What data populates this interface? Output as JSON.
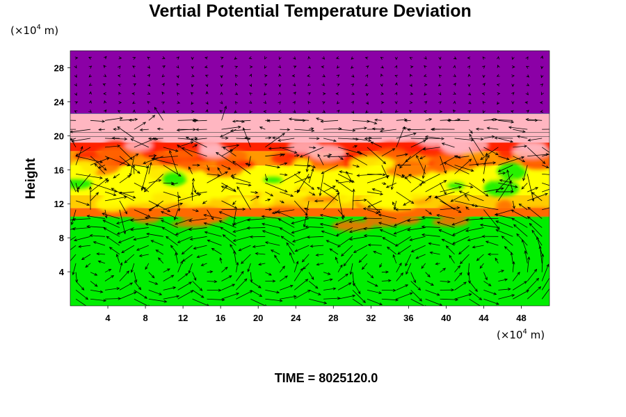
{
  "chart_data": {
    "type": "heatmap",
    "title": "Vertial Potential Temperature Deviation",
    "ylabel": "Height",
    "xlabel": "",
    "x_unit": {
      "prefix": "(×10",
      "exp": "4",
      "suffix": " m)"
    },
    "y_unit": {
      "prefix": "(×10",
      "exp": "4",
      "suffix": " m)"
    },
    "xlim": [
      0,
      51
    ],
    "ylim": [
      0,
      30
    ],
    "x_ticks": [
      4,
      8,
      12,
      16,
      20,
      24,
      28,
      32,
      36,
      40,
      44,
      48
    ],
    "y_ticks": [
      4,
      8,
      12,
      16,
      20,
      24,
      28
    ],
    "time_label": "TIME = 8025120.0",
    "layers": [
      {
        "y0": 0,
        "y1": 10.5,
        "color": "#00ee00"
      },
      {
        "y0": 10.5,
        "y1": 11.5,
        "color": "#ff6a00"
      },
      {
        "y0": 11.5,
        "y1": 13.0,
        "color": "#ffcc00"
      },
      {
        "y0": 13.0,
        "y1": 16.5,
        "color": "#ffff00"
      },
      {
        "y0": 16.5,
        "y1": 18.2,
        "color": "#ff9900"
      },
      {
        "y0": 18.2,
        "y1": 19.2,
        "color": "#ff2200"
      },
      {
        "y0": 19.2,
        "y1": 22.6,
        "color": "#ffb6c1"
      },
      {
        "y0": 22.6,
        "y1": 30,
        "color": "#8b00a6"
      }
    ],
    "colors": {
      "lower": "#00ee00",
      "orange": "#ff6a00",
      "yellow": "#ffff00",
      "red": "#ff2200",
      "pink": "#ffb6c1",
      "upper": "#8b00a6",
      "vector": "#000000"
    },
    "vector_field": "arrows"
  }
}
